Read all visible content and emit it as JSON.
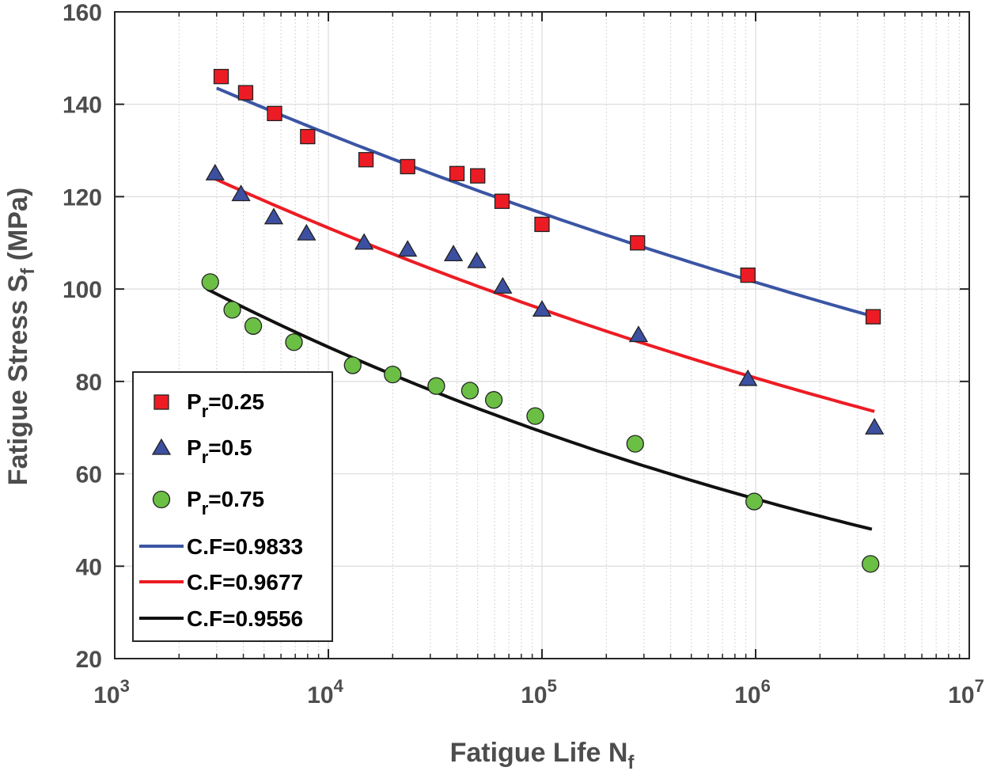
{
  "chart_data": {
    "type": "scatter",
    "xlabel": "Fatigue Life N",
    "xlabel_sub": "f",
    "ylabel": "Fatigue Stress S",
    "ylabel_sub": "f",
    "ylabel_unit": " (MPa)",
    "xscale": "log",
    "xlim": [
      1000,
      10000000
    ],
    "ylim": [
      20,
      160
    ],
    "grid": true,
    "x_ticks": [
      {
        "value": 1000,
        "base": "10",
        "exp": "3"
      },
      {
        "value": 10000,
        "base": "10",
        "exp": "4"
      },
      {
        "value": 100000,
        "base": "10",
        "exp": "5"
      },
      {
        "value": 1000000,
        "base": "10",
        "exp": "6"
      },
      {
        "value": 10000000,
        "base": "10",
        "exp": "7"
      }
    ],
    "y_ticks": [
      "20",
      "40",
      "60",
      "80",
      "100",
      "120",
      "140",
      "160"
    ],
    "legend_position": "bottom-left",
    "series": [
      {
        "name": "Pr=0.25",
        "label_main": "P",
        "label_sub": "r",
        "label_rest": "=0.25",
        "marker": "square",
        "color": "#ed1c24",
        "points": [
          [
            3150,
            146
          ],
          [
            4100,
            142.5
          ],
          [
            5600,
            138
          ],
          [
            8000,
            133
          ],
          [
            15000,
            128
          ],
          [
            23500,
            126.5
          ],
          [
            40000,
            125
          ],
          [
            50000,
            124.5
          ],
          [
            65000,
            119
          ],
          [
            100000,
            114
          ],
          [
            280000,
            110
          ],
          [
            920000,
            103
          ],
          [
            3550000,
            94
          ]
        ]
      },
      {
        "name": "Pr=0.5",
        "label_main": "P",
        "label_sub": "r",
        "label_rest": "=0.5",
        "marker": "triangle",
        "color": "#3c4fa0",
        "points": [
          [
            2950,
            125
          ],
          [
            3900,
            120.5
          ],
          [
            5550,
            115.5
          ],
          [
            7900,
            112
          ],
          [
            14700,
            110
          ],
          [
            23500,
            108.5
          ],
          [
            38500,
            107.5
          ],
          [
            49500,
            106
          ],
          [
            65500,
            100.5
          ],
          [
            100000,
            95.5
          ],
          [
            283000,
            90
          ],
          [
            920000,
            80.5
          ],
          [
            3600000,
            70
          ]
        ]
      },
      {
        "name": "Pr=0.75",
        "label_main": "P",
        "label_sub": "r",
        "label_rest": "=0.75",
        "marker": "circle",
        "color": "#6cbf45",
        "points": [
          [
            2800,
            101.5
          ],
          [
            3550,
            95.5
          ],
          [
            4450,
            92
          ],
          [
            6900,
            88.5
          ],
          [
            13000,
            83.5
          ],
          [
            20000,
            81.5
          ],
          [
            32000,
            79
          ],
          [
            46000,
            78
          ],
          [
            59500,
            76
          ],
          [
            93000,
            72.5
          ],
          [
            273000,
            66.5
          ],
          [
            985000,
            54
          ],
          [
            3450000,
            40.5
          ]
        ]
      }
    ],
    "fits": [
      {
        "name": "C.F=0.9833",
        "label": "C.F=0.9833",
        "color": "#3b55a4",
        "x_range": [
          3000,
          3600000
        ],
        "y_at_start": 143.5,
        "y_at_end": 94
      },
      {
        "name": "C.F=0.9677",
        "label": "C.F=0.9677",
        "color": "#ed1c24",
        "x_range": [
          2900,
          3600000
        ],
        "y_at_start": 124,
        "y_at_end": 73.5
      },
      {
        "name": "C.F=0.9556",
        "label": "C.F=0.9556",
        "color": "#111111",
        "x_range": [
          2700,
          3500000
        ],
        "y_at_start": 100,
        "y_at_end": 48
      }
    ]
  }
}
